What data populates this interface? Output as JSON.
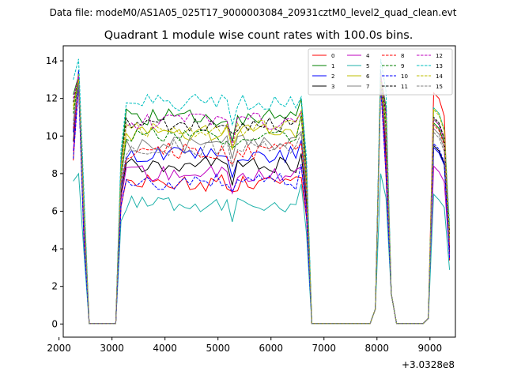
{
  "suptitle": "Data file: modeM0/AS1A05_025T17_9000003084_20931cztM0_level2_quad_clean.evt",
  "chart_data": {
    "type": "line",
    "title": "Quadrant 1 module wise count rates with 100.0s bins.",
    "xlabel": "",
    "ylabel": "",
    "x_offset_label": "+3.0328e8",
    "xlim": [
      2080,
      9480
    ],
    "ylim": [
      -0.7,
      14.8
    ],
    "xticks": [
      2000,
      3000,
      4000,
      5000,
      6000,
      7000,
      8000,
      9000
    ],
    "yticks": [
      0,
      2,
      4,
      6,
      8,
      10,
      12,
      14
    ],
    "grid": false,
    "legend": {
      "placement": "top-right",
      "columns": 4
    },
    "segments": [
      {
        "x": [
          2270,
          2370,
          2470,
          2570,
          2670,
          2770,
          2870,
          2970,
          3070,
          3170,
          3270,
          3370,
          3470,
          3570,
          3670,
          3770,
          3870,
          3970,
          4070,
          4170,
          4270,
          4370,
          4470,
          4570,
          4670,
          4770,
          4870,
          4970,
          5070,
          5170,
          5270,
          5370,
          5470,
          5570,
          5670,
          5770,
          5870,
          5970,
          6070,
          6170,
          6270,
          6370,
          6470,
          6570,
          6670,
          6770,
          6870,
          6970,
          7070,
          7170,
          7270,
          7370,
          7470,
          7570,
          7670,
          7770,
          7870,
          7970,
          8070,
          8170,
          8270,
          8370,
          8470,
          8570,
          8670,
          8770,
          8870,
          8970,
          9070,
          9170,
          9270,
          9370
        ]
      }
    ],
    "series": [
      {
        "name": "0",
        "color": "#ff0000",
        "dash": false,
        "plateau": 7.5,
        "peak": 13.0,
        "bump": 12.3
      },
      {
        "name": "1",
        "color": "#008000",
        "dash": false,
        "plateau": 11.0,
        "peak": 13.2,
        "bump": 10.7
      },
      {
        "name": "2",
        "color": "#0000ff",
        "dash": false,
        "plateau": 9.0,
        "peak": 13.5,
        "bump": 9.4
      },
      {
        "name": "3",
        "color": "#000000",
        "dash": false,
        "plateau": 8.5,
        "peak": 12.8,
        "bump": 9.5
      },
      {
        "name": "4",
        "color": "#bf00bf",
        "dash": false,
        "plateau": 8.0,
        "peak": 12.9,
        "bump": 8.4
      },
      {
        "name": "5",
        "color": "#20b2aa",
        "dash": false,
        "plateau": 6.4,
        "peak": 8.0,
        "bump": 6.9
      },
      {
        "name": "6",
        "color": "#bfbf00",
        "dash": false,
        "plateau": 10.2,
        "peak": 13.3,
        "bump": 11.5
      },
      {
        "name": "7",
        "color": "#808080",
        "dash": false,
        "plateau": 9.6,
        "peak": 12.9,
        "bump": 10.4
      },
      {
        "name": "8",
        "color": "#ff0000",
        "dash": true,
        "plateau": 9.2,
        "peak": 12.7,
        "bump": 10.6
      },
      {
        "name": "9",
        "color": "#008000",
        "dash": true,
        "plateau": 10.0,
        "peak": 13.0,
        "bump": 10.9
      },
      {
        "name": "10",
        "color": "#0000ff",
        "dash": true,
        "plateau": 7.6,
        "peak": 12.6,
        "bump": 9.6
      },
      {
        "name": "11",
        "color": "#000000",
        "dash": true,
        "plateau": 10.6,
        "peak": 13.1,
        "bump": 11.0
      },
      {
        "name": "12",
        "color": "#bf00bf",
        "dash": true,
        "plateau": 10.8,
        "peak": 13.2,
        "bump": 10.9
      },
      {
        "name": "13",
        "color": "#00bfbf",
        "dash": true,
        "plateau": 11.8,
        "peak": 14.1,
        "bump": 11.5
      },
      {
        "name": "14",
        "color": "#bfbf00",
        "dash": true,
        "plateau": 10.4,
        "peak": 13.0,
        "bump": 11.4
      },
      {
        "name": "15",
        "color": "#808080",
        "dash": true,
        "plateau": 9.4,
        "peak": 12.8,
        "bump": 10.2
      }
    ]
  }
}
